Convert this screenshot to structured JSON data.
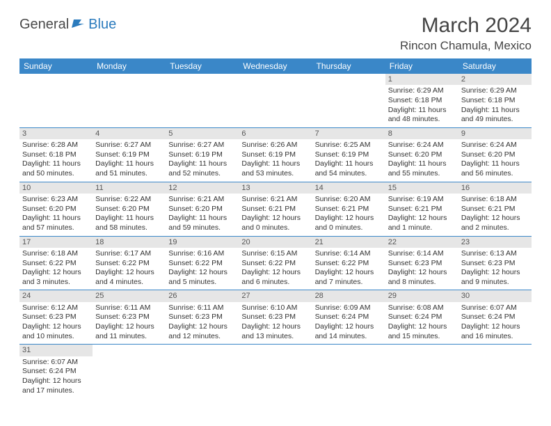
{
  "logo": {
    "text1": "General",
    "text2": "Blue"
  },
  "title": "March 2024",
  "location": "Rincon Chamula, Mexico",
  "colors": {
    "header_bg": "#3a87c8",
    "header_fg": "#ffffff",
    "daynum_bg": "#e6e6e6",
    "row_border": "#3a87c8",
    "logo_blue": "#2b7bbd",
    "logo_gray": "#4a4a4a"
  },
  "weekdays": [
    "Sunday",
    "Monday",
    "Tuesday",
    "Wednesday",
    "Thursday",
    "Friday",
    "Saturday"
  ],
  "weeks": [
    [
      null,
      null,
      null,
      null,
      null,
      {
        "n": "1",
        "sr": "Sunrise: 6:29 AM",
        "ss": "Sunset: 6:18 PM",
        "dl": "Daylight: 11 hours and 48 minutes."
      },
      {
        "n": "2",
        "sr": "Sunrise: 6:29 AM",
        "ss": "Sunset: 6:18 PM",
        "dl": "Daylight: 11 hours and 49 minutes."
      }
    ],
    [
      {
        "n": "3",
        "sr": "Sunrise: 6:28 AM",
        "ss": "Sunset: 6:18 PM",
        "dl": "Daylight: 11 hours and 50 minutes."
      },
      {
        "n": "4",
        "sr": "Sunrise: 6:27 AM",
        "ss": "Sunset: 6:19 PM",
        "dl": "Daylight: 11 hours and 51 minutes."
      },
      {
        "n": "5",
        "sr": "Sunrise: 6:27 AM",
        "ss": "Sunset: 6:19 PM",
        "dl": "Daylight: 11 hours and 52 minutes."
      },
      {
        "n": "6",
        "sr": "Sunrise: 6:26 AM",
        "ss": "Sunset: 6:19 PM",
        "dl": "Daylight: 11 hours and 53 minutes."
      },
      {
        "n": "7",
        "sr": "Sunrise: 6:25 AM",
        "ss": "Sunset: 6:19 PM",
        "dl": "Daylight: 11 hours and 54 minutes."
      },
      {
        "n": "8",
        "sr": "Sunrise: 6:24 AM",
        "ss": "Sunset: 6:20 PM",
        "dl": "Daylight: 11 hours and 55 minutes."
      },
      {
        "n": "9",
        "sr": "Sunrise: 6:24 AM",
        "ss": "Sunset: 6:20 PM",
        "dl": "Daylight: 11 hours and 56 minutes."
      }
    ],
    [
      {
        "n": "10",
        "sr": "Sunrise: 6:23 AM",
        "ss": "Sunset: 6:20 PM",
        "dl": "Daylight: 11 hours and 57 minutes."
      },
      {
        "n": "11",
        "sr": "Sunrise: 6:22 AM",
        "ss": "Sunset: 6:20 PM",
        "dl": "Daylight: 11 hours and 58 minutes."
      },
      {
        "n": "12",
        "sr": "Sunrise: 6:21 AM",
        "ss": "Sunset: 6:20 PM",
        "dl": "Daylight: 11 hours and 59 minutes."
      },
      {
        "n": "13",
        "sr": "Sunrise: 6:21 AM",
        "ss": "Sunset: 6:21 PM",
        "dl": "Daylight: 12 hours and 0 minutes."
      },
      {
        "n": "14",
        "sr": "Sunrise: 6:20 AM",
        "ss": "Sunset: 6:21 PM",
        "dl": "Daylight: 12 hours and 0 minutes."
      },
      {
        "n": "15",
        "sr": "Sunrise: 6:19 AM",
        "ss": "Sunset: 6:21 PM",
        "dl": "Daylight: 12 hours and 1 minute."
      },
      {
        "n": "16",
        "sr": "Sunrise: 6:18 AM",
        "ss": "Sunset: 6:21 PM",
        "dl": "Daylight: 12 hours and 2 minutes."
      }
    ],
    [
      {
        "n": "17",
        "sr": "Sunrise: 6:18 AM",
        "ss": "Sunset: 6:22 PM",
        "dl": "Daylight: 12 hours and 3 minutes."
      },
      {
        "n": "18",
        "sr": "Sunrise: 6:17 AM",
        "ss": "Sunset: 6:22 PM",
        "dl": "Daylight: 12 hours and 4 minutes."
      },
      {
        "n": "19",
        "sr": "Sunrise: 6:16 AM",
        "ss": "Sunset: 6:22 PM",
        "dl": "Daylight: 12 hours and 5 minutes."
      },
      {
        "n": "20",
        "sr": "Sunrise: 6:15 AM",
        "ss": "Sunset: 6:22 PM",
        "dl": "Daylight: 12 hours and 6 minutes."
      },
      {
        "n": "21",
        "sr": "Sunrise: 6:14 AM",
        "ss": "Sunset: 6:22 PM",
        "dl": "Daylight: 12 hours and 7 minutes."
      },
      {
        "n": "22",
        "sr": "Sunrise: 6:14 AM",
        "ss": "Sunset: 6:23 PM",
        "dl": "Daylight: 12 hours and 8 minutes."
      },
      {
        "n": "23",
        "sr": "Sunrise: 6:13 AM",
        "ss": "Sunset: 6:23 PM",
        "dl": "Daylight: 12 hours and 9 minutes."
      }
    ],
    [
      {
        "n": "24",
        "sr": "Sunrise: 6:12 AM",
        "ss": "Sunset: 6:23 PM",
        "dl": "Daylight: 12 hours and 10 minutes."
      },
      {
        "n": "25",
        "sr": "Sunrise: 6:11 AM",
        "ss": "Sunset: 6:23 PM",
        "dl": "Daylight: 12 hours and 11 minutes."
      },
      {
        "n": "26",
        "sr": "Sunrise: 6:11 AM",
        "ss": "Sunset: 6:23 PM",
        "dl": "Daylight: 12 hours and 12 minutes."
      },
      {
        "n": "27",
        "sr": "Sunrise: 6:10 AM",
        "ss": "Sunset: 6:23 PM",
        "dl": "Daylight: 12 hours and 13 minutes."
      },
      {
        "n": "28",
        "sr": "Sunrise: 6:09 AM",
        "ss": "Sunset: 6:24 PM",
        "dl": "Daylight: 12 hours and 14 minutes."
      },
      {
        "n": "29",
        "sr": "Sunrise: 6:08 AM",
        "ss": "Sunset: 6:24 PM",
        "dl": "Daylight: 12 hours and 15 minutes."
      },
      {
        "n": "30",
        "sr": "Sunrise: 6:07 AM",
        "ss": "Sunset: 6:24 PM",
        "dl": "Daylight: 12 hours and 16 minutes."
      }
    ],
    [
      {
        "n": "31",
        "sr": "Sunrise: 6:07 AM",
        "ss": "Sunset: 6:24 PM",
        "dl": "Daylight: 12 hours and 17 minutes."
      },
      null,
      null,
      null,
      null,
      null,
      null
    ]
  ]
}
